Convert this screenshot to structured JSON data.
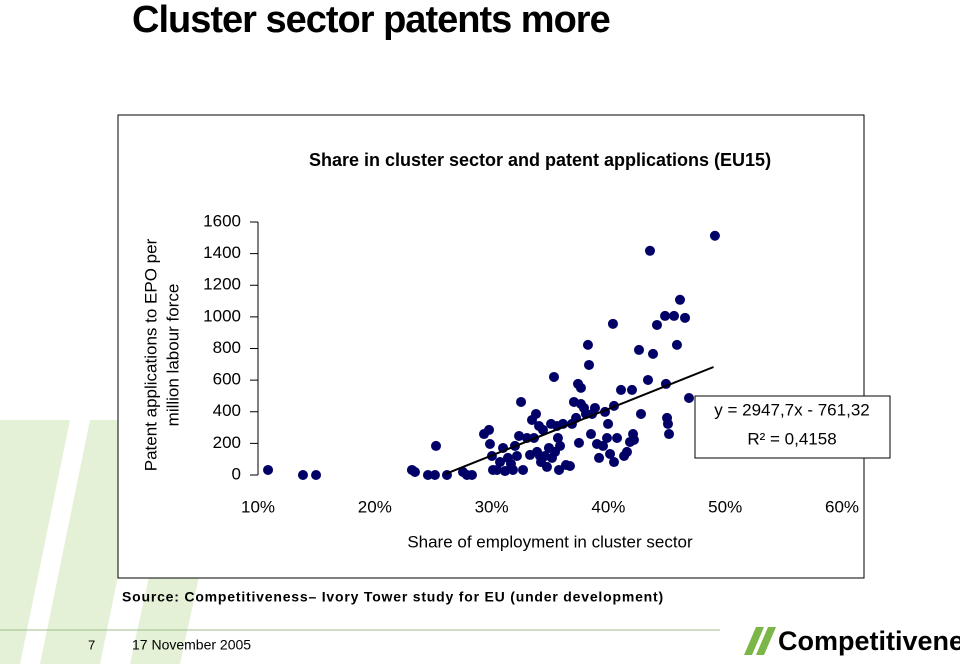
{
  "title": "Cluster sector patents more",
  "chart_data": {
    "type": "scatter",
    "title": "Share in cluster sector and patent applications (EU15)",
    "xlabel": "Share of employment in cluster sector",
    "ylabel": [
      "Patent applications to EPO per",
      "million labour force"
    ],
    "xlim": [
      0.1,
      0.6
    ],
    "xticks": [
      {
        "value": 0.1,
        "label": "10%"
      },
      {
        "value": 0.2,
        "label": "20%"
      },
      {
        "value": 0.3,
        "label": "30%"
      },
      {
        "value": 0.4,
        "label": "40%"
      },
      {
        "value": 0.5,
        "label": "50%"
      },
      {
        "value": 0.6,
        "label": "60%"
      }
    ],
    "ylim": [
      0,
      1600
    ],
    "yticks": [
      0,
      200,
      400,
      600,
      800,
      1000,
      1200,
      1400,
      1600
    ],
    "color": "#000066",
    "x": [
      0.1086,
      0.1385,
      0.1497,
      0.2318,
      0.2344,
      0.2455,
      0.2515,
      0.2524,
      0.2618,
      0.2755,
      0.2789,
      0.2832,
      0.2935,
      0.2978,
      0.2986,
      0.3003,
      0.3012,
      0.3046,
      0.3072,
      0.3098,
      0.3115,
      0.314,
      0.3166,
      0.3183,
      0.32,
      0.3217,
      0.3235,
      0.3252,
      0.3269,
      0.3303,
      0.3329,
      0.3346,
      0.3363,
      0.338,
      0.3389,
      0.3406,
      0.3414,
      0.3423,
      0.344,
      0.3457,
      0.3474,
      0.3491,
      0.3509,
      0.3517,
      0.3534,
      0.3543,
      0.356,
      0.3568,
      0.3577,
      0.3586,
      0.3611,
      0.3637,
      0.3671,
      0.3688,
      0.3705,
      0.3723,
      0.374,
      0.3748,
      0.3765,
      0.3765,
      0.3791,
      0.3808,
      0.3825,
      0.3834,
      0.3851,
      0.386,
      0.3885,
      0.3902,
      0.392,
      0.3954,
      0.3971,
      0.3988,
      0.3997,
      0.4014,
      0.4039,
      0.4048,
      0.4048,
      0.4074,
      0.4108,
      0.4134,
      0.4159,
      0.4185,
      0.4202,
      0.4211,
      0.4219,
      0.4262,
      0.4279,
      0.4339,
      0.4356,
      0.4382,
      0.4416,
      0.4485,
      0.4493,
      0.4502,
      0.451,
      0.4519,
      0.4562,
      0.4587,
      0.4613,
      0.4656,
      0.469,
      0.4912
    ],
    "values": [
      32,
      0,
      0,
      32,
      19,
      0,
      0,
      184,
      0,
      19,
      0,
      0,
      259,
      285,
      196,
      120,
      32,
      32,
      82,
      171,
      25,
      108,
      70,
      32,
      184,
      120,
      247,
      462,
      32,
      234,
      127,
      348,
      234,
      386,
      146,
      310,
      120,
      82,
      285,
      120,
      51,
      171,
      323,
      108,
      620,
      146,
      310,
      234,
      32,
      184,
      323,
      63,
      57,
      323,
      462,
      361,
      576,
      203,
      551,
      449,
      424,
      386,
      823,
      696,
      259,
      386,
      424,
      196,
      108,
      184,
      399,
      234,
      323,
      133,
      956,
      437,
      82,
      234,
      538,
      120,
      146,
      209,
      538,
      259,
      222,
      791,
      386,
      601,
      1418,
      766,
      949,
      1006,
      576,
      361,
      323,
      259,
      1006,
      823,
      1108,
      994,
      487,
      1513
    ],
    "trendline": {
      "x": [
        0.26,
        0.49
      ],
      "slope": 2947.7,
      "intercept": -761.32,
      "label": "y = 2947,7x - 761,32",
      "r2_label": "R² = 0,4158"
    }
  },
  "source": "Source: Competitiveness– Ivory Tower study for EU (under development)",
  "footer": {
    "page": "7",
    "date": "17 November 2005",
    "logo": "Competitiveness"
  }
}
